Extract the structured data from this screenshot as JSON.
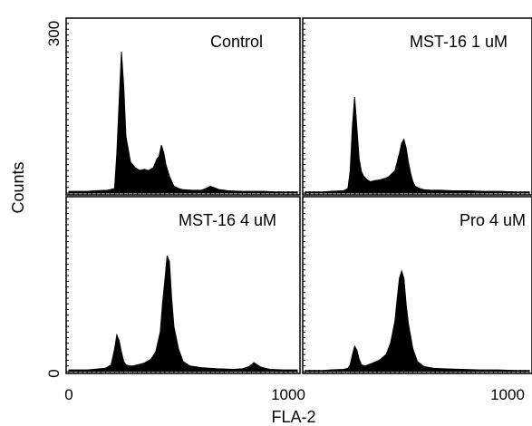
{
  "chart_data": {
    "type": "area",
    "xlabel": "FLA-2",
    "ylabel": "Counts",
    "xlim": [
      0,
      1000
    ],
    "ylim": [
      0,
      300
    ],
    "x_tick_labels": [
      "0",
      "1000"
    ],
    "y_tick_labels": [
      "0",
      "300"
    ],
    "panels": [
      {
        "title": "Control",
        "x": [
          0,
          40,
          80,
          110,
          170,
          200,
          210,
          220,
          230,
          240,
          250,
          270,
          290,
          310,
          330,
          350,
          370,
          385,
          395,
          405,
          415,
          425,
          440,
          460,
          480,
          500,
          540,
          580,
          600,
          620,
          660,
          700,
          760,
          800,
          860,
          900,
          960,
          1000
        ],
        "values": [
          3,
          3,
          3,
          4,
          5,
          8,
          70,
          160,
          250,
          190,
          100,
          55,
          45,
          40,
          42,
          40,
          45,
          60,
          65,
          85,
          72,
          50,
          30,
          12,
          8,
          6,
          5,
          5,
          8,
          12,
          6,
          4,
          3,
          3,
          3,
          2,
          2,
          2
        ]
      },
      {
        "title": "MST-16 1 uM",
        "x": [
          0,
          40,
          80,
          110,
          170,
          190,
          200,
          210,
          220,
          230,
          240,
          250,
          260,
          275,
          290,
          310,
          340,
          370,
          400,
          420,
          430,
          440,
          450,
          460,
          470,
          480,
          490,
          510,
          530,
          560,
          600,
          660,
          720,
          800,
          870,
          940,
          1000
        ],
        "values": [
          2,
          2,
          2,
          3,
          4,
          8,
          40,
          120,
          170,
          115,
          60,
          38,
          30,
          24,
          20,
          22,
          24,
          28,
          40,
          70,
          88,
          95,
          80,
          55,
          35,
          20,
          12,
          8,
          6,
          5,
          5,
          4,
          4,
          3,
          3,
          2,
          2
        ]
      },
      {
        "title": "MST-16 4 uM",
        "x": [
          0,
          40,
          80,
          110,
          160,
          185,
          200,
          210,
          220,
          230,
          240,
          250,
          265,
          280,
          300,
          330,
          360,
          380,
          400,
          410,
          420,
          430,
          440,
          450,
          460,
          480,
          500,
          530,
          580,
          650,
          720,
          760,
          790,
          810,
          840,
          880,
          940,
          1000
        ],
        "values": [
          3,
          3,
          3,
          4,
          6,
          12,
          40,
          65,
          55,
          35,
          18,
          12,
          10,
          10,
          12,
          15,
          22,
          35,
          70,
          120,
          160,
          205,
          195,
          130,
          80,
          40,
          18,
          10,
          7,
          5,
          4,
          5,
          9,
          16,
          8,
          4,
          3,
          3
        ]
      },
      {
        "title": "Pro 4 uM",
        "x": [
          0,
          40,
          80,
          110,
          170,
          190,
          200,
          210,
          220,
          230,
          240,
          250,
          265,
          280,
          300,
          330,
          360,
          380,
          400,
          410,
          420,
          430,
          440,
          450,
          460,
          480,
          500,
          530,
          570,
          620,
          700,
          780,
          860,
          940,
          1000
        ],
        "values": [
          2,
          2,
          2,
          3,
          4,
          6,
          12,
          30,
          45,
          38,
          22,
          12,
          10,
          12,
          15,
          20,
          30,
          50,
          90,
          130,
          165,
          178,
          165,
          120,
          85,
          40,
          18,
          9,
          6,
          5,
          4,
          3,
          3,
          2,
          2
        ]
      }
    ]
  }
}
